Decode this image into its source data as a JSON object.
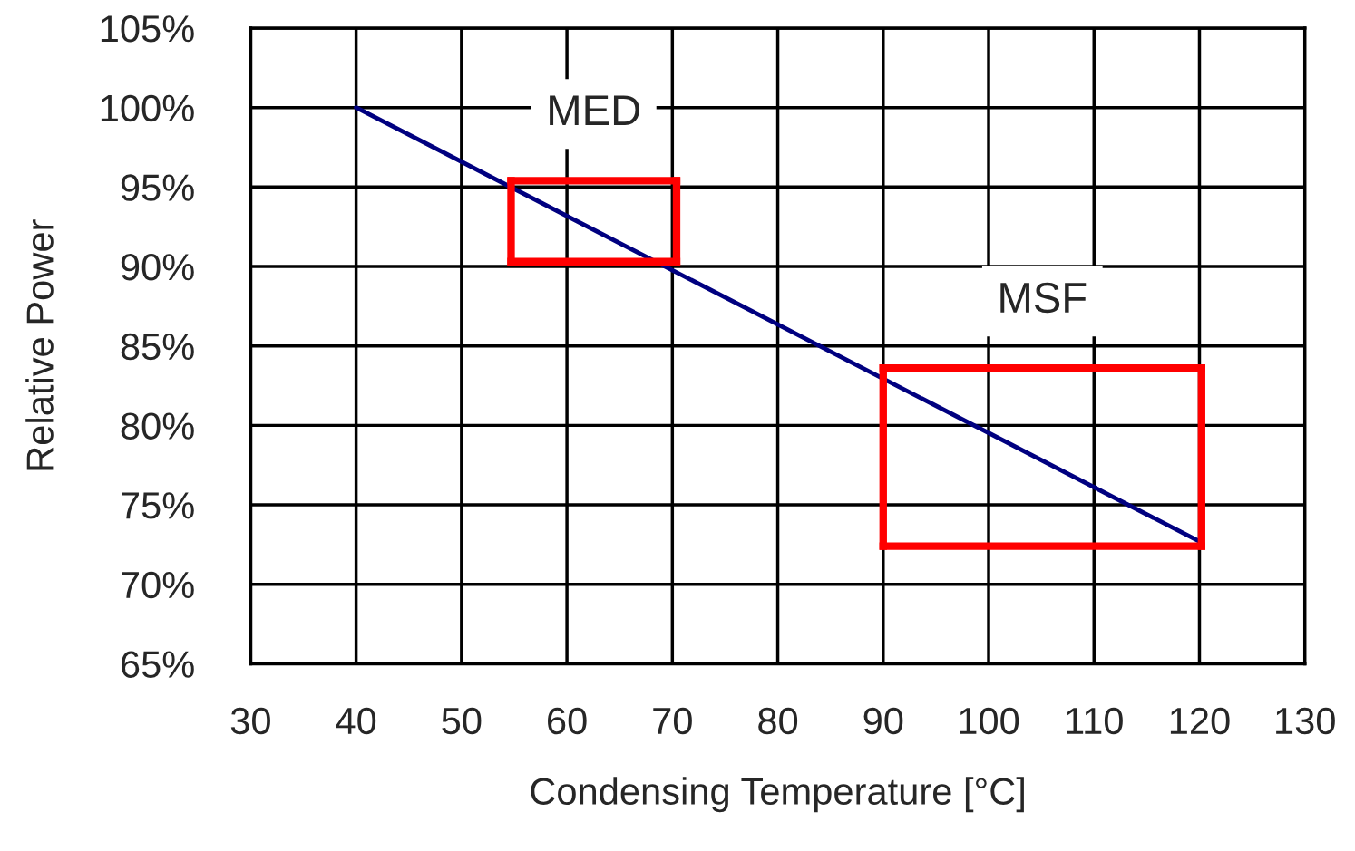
{
  "chart_data": {
    "type": "line",
    "xlabel": "Condensing Temperature [°C]",
    "ylabel": "Relative Power",
    "xlim": [
      30,
      130
    ],
    "xticks": [
      30,
      40,
      50,
      60,
      70,
      80,
      90,
      100,
      110,
      120,
      130
    ],
    "ylim": [
      65,
      105
    ],
    "yticks": [
      {
        "value": 65,
        "label": "65%"
      },
      {
        "value": 70,
        "label": "70%"
      },
      {
        "value": 75,
        "label": "75%"
      },
      {
        "value": 80,
        "label": "80%"
      },
      {
        "value": 85,
        "label": "85%"
      },
      {
        "value": 90,
        "label": "90%"
      },
      {
        "value": 95,
        "label": "95%"
      },
      {
        "value": 100,
        "label": "100%"
      },
      {
        "value": 105,
        "label": "105%"
      }
    ],
    "grid": true,
    "legend": false,
    "series": [
      {
        "x": [
          40,
          120
        ],
        "values": [
          100,
          72.7
        ],
        "color": "#000080"
      },
      {
        "x": [
          54.7,
          70.4
        ],
        "values": [
          95.4,
          95.4
        ],
        "color": "#ff0000"
      },
      {
        "x": [
          54.7,
          70.4
        ],
        "values": [
          90.3,
          90.3
        ],
        "color": "#ff0000"
      },
      {
        "x": [
          54.7,
          54.7
        ],
        "values": [
          90.3,
          95.4
        ],
        "color": "#ff0000"
      },
      {
        "x": [
          70.4,
          70.4
        ],
        "values": [
          90.3,
          95.4
        ],
        "color": "#ff0000"
      },
      {
        "x": [
          90,
          120.2
        ],
        "values": [
          83.6,
          83.6
        ],
        "color": "#ff0000"
      },
      {
        "x": [
          90,
          120.2
        ],
        "values": [
          72.4,
          72.4
        ],
        "color": "#ff0000"
      },
      {
        "x": [
          90,
          90
        ],
        "values": [
          72.4,
          83.6
        ],
        "color": "#ff0000"
      },
      {
        "x": [
          120.2,
          120.2
        ],
        "values": [
          72.4,
          83.6
        ],
        "color": "#ff0000"
      }
    ],
    "annotations": [
      {
        "text": "MED",
        "x": 62.55,
        "y": 95.4
      },
      {
        "text": "MSF",
        "x": 105.1,
        "y": 83.6
      }
    ]
  }
}
